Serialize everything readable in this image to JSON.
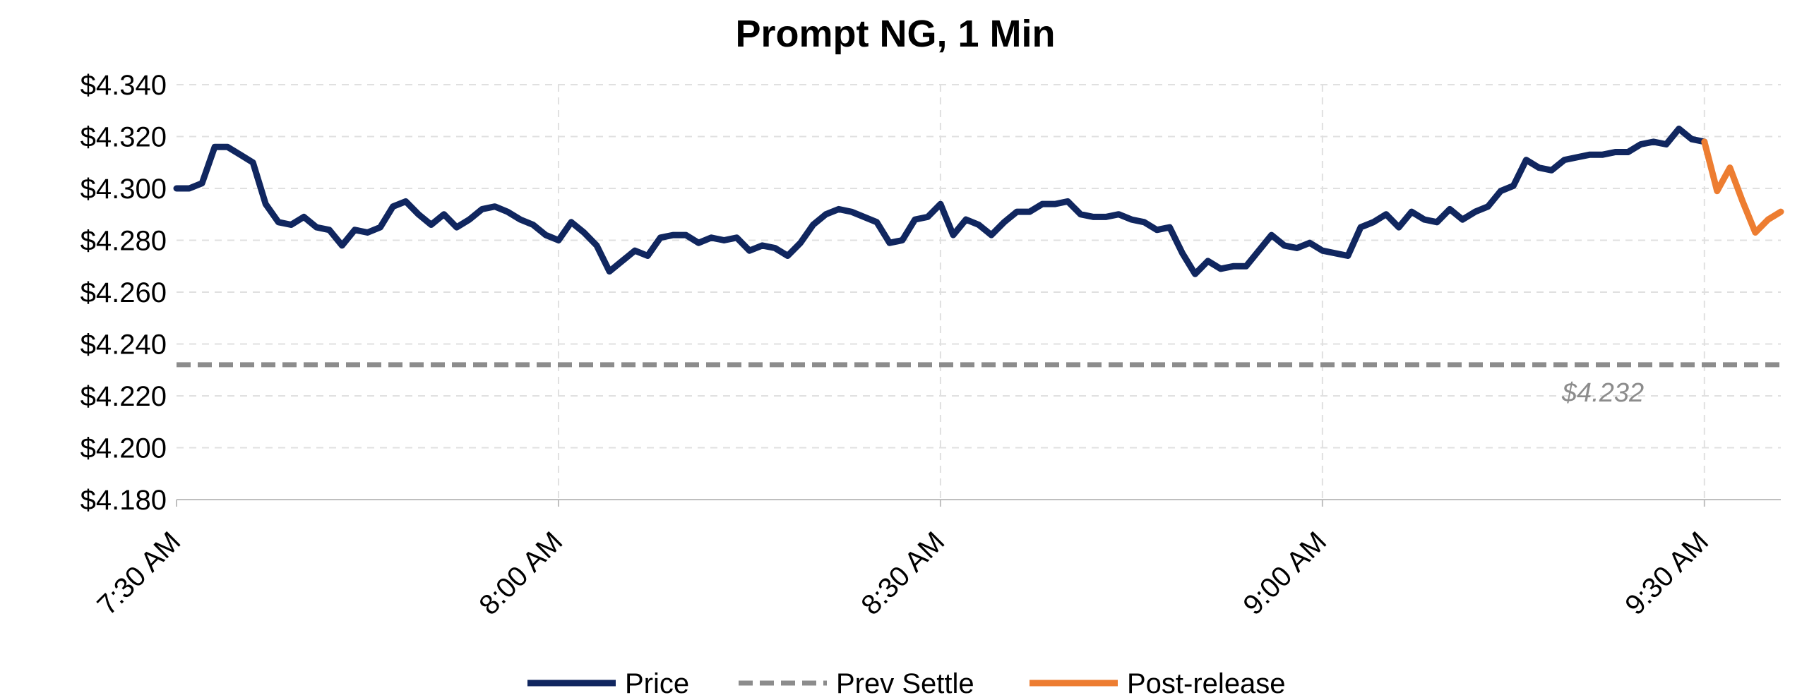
{
  "chart_data": {
    "type": "line",
    "title": "Prompt NG, 1 Min",
    "ylim": [
      4.18,
      4.34
    ],
    "yticks": [
      "$4.180",
      "$4.200",
      "$4.220",
      "$4.240",
      "$4.260",
      "$4.280",
      "$4.300",
      "$4.320",
      "$4.340"
    ],
    "ytick_values": [
      4.18,
      4.2,
      4.22,
      4.24,
      4.26,
      4.28,
      4.3,
      4.32,
      4.34
    ],
    "xlim": [
      "7:30 AM",
      "9:36 AM"
    ],
    "xticks": [
      "7:30 AM",
      "8:00 AM",
      "8:30 AM",
      "9:00 AM",
      "9:30 AM"
    ],
    "grid": true,
    "legend_position": "bottom",
    "series": [
      {
        "name": "Price",
        "color": "#10265f",
        "style": "solid",
        "x": [
          "7:30 AM",
          "7:31 AM",
          "7:32 AM",
          "7:33 AM",
          "7:34 AM",
          "7:35 AM",
          "7:36 AM",
          "7:37 AM",
          "7:38 AM",
          "7:39 AM",
          "7:40 AM",
          "7:41 AM",
          "7:42 AM",
          "7:43 AM",
          "7:44 AM",
          "7:45 AM",
          "7:46 AM",
          "7:47 AM",
          "7:48 AM",
          "7:49 AM",
          "7:50 AM",
          "7:51 AM",
          "7:52 AM",
          "7:53 AM",
          "7:54 AM",
          "7:55 AM",
          "7:56 AM",
          "7:57 AM",
          "7:58 AM",
          "7:59 AM",
          "8:00 AM",
          "8:01 AM",
          "8:02 AM",
          "8:03 AM",
          "8:04 AM",
          "8:05 AM",
          "8:06 AM",
          "8:07 AM",
          "8:08 AM",
          "8:09 AM",
          "8:10 AM",
          "8:11 AM",
          "8:12 AM",
          "8:13 AM",
          "8:14 AM",
          "8:15 AM",
          "8:16 AM",
          "8:17 AM",
          "8:18 AM",
          "8:19 AM",
          "8:20 AM",
          "8:21 AM",
          "8:22 AM",
          "8:23 AM",
          "8:24 AM",
          "8:25 AM",
          "8:26 AM",
          "8:27 AM",
          "8:28 AM",
          "8:29 AM",
          "8:30 AM",
          "8:31 AM",
          "8:32 AM",
          "8:33 AM",
          "8:34 AM",
          "8:35 AM",
          "8:36 AM",
          "8:37 AM",
          "8:38 AM",
          "8:39 AM",
          "8:40 AM",
          "8:41 AM",
          "8:42 AM",
          "8:43 AM",
          "8:44 AM",
          "8:45 AM",
          "8:46 AM",
          "8:47 AM",
          "8:48 AM",
          "8:49 AM",
          "8:50 AM",
          "8:51 AM",
          "8:52 AM",
          "8:53 AM",
          "8:54 AM",
          "8:55 AM",
          "8:56 AM",
          "8:57 AM",
          "8:58 AM",
          "8:59 AM",
          "9:00 AM",
          "9:01 AM",
          "9:02 AM",
          "9:03 AM",
          "9:04 AM",
          "9:05 AM",
          "9:06 AM",
          "9:07 AM",
          "9:08 AM",
          "9:09 AM",
          "9:10 AM",
          "9:11 AM",
          "9:12 AM",
          "9:13 AM",
          "9:14 AM",
          "9:15 AM",
          "9:16 AM",
          "9:17 AM",
          "9:18 AM",
          "9:19 AM",
          "9:20 AM",
          "9:21 AM",
          "9:22 AM",
          "9:23 AM",
          "9:24 AM",
          "9:25 AM",
          "9:26 AM",
          "9:27 AM",
          "9:28 AM",
          "9:29 AM",
          "9:30 AM"
        ],
        "values": [
          4.3,
          4.3,
          4.302,
          4.316,
          4.316,
          4.313,
          4.31,
          4.294,
          4.287,
          4.286,
          4.289,
          4.285,
          4.284,
          4.278,
          4.284,
          4.283,
          4.285,
          4.293,
          4.295,
          4.29,
          4.286,
          4.29,
          4.285,
          4.288,
          4.292,
          4.293,
          4.291,
          4.288,
          4.286,
          4.282,
          4.28,
          4.287,
          4.283,
          4.278,
          4.268,
          4.272,
          4.276,
          4.274,
          4.281,
          4.282,
          4.282,
          4.279,
          4.281,
          4.28,
          4.281,
          4.276,
          4.278,
          4.277,
          4.274,
          4.279,
          4.286,
          4.29,
          4.292,
          4.291,
          4.289,
          4.287,
          4.279,
          4.28,
          4.288,
          4.289,
          4.294,
          4.282,
          4.288,
          4.286,
          4.282,
          4.287,
          4.291,
          4.291,
          4.294,
          4.294,
          4.295,
          4.29,
          4.289,
          4.289,
          4.29,
          4.288,
          4.287,
          4.284,
          4.285,
          4.275,
          4.267,
          4.272,
          4.269,
          4.27,
          4.27,
          4.276,
          4.282,
          4.278,
          4.277,
          4.279,
          4.276,
          4.275,
          4.274,
          4.285,
          4.287,
          4.29,
          4.285,
          4.291,
          4.288,
          4.287,
          4.292,
          4.288,
          4.291,
          4.293,
          4.299,
          4.301,
          4.311,
          4.308,
          4.307,
          4.311,
          4.312,
          4.313,
          4.313,
          4.314,
          4.314,
          4.317,
          4.318,
          4.317,
          4.323,
          4.319,
          4.318
        ]
      },
      {
        "name": "Prev Settle",
        "color": "#8c8c8c",
        "style": "dashed",
        "value": 4.232,
        "label": "$4.232"
      },
      {
        "name": "Post-release",
        "color": "#ed7d31",
        "style": "solid",
        "x": [
          "9:30 AM",
          "9:31 AM",
          "9:32 AM",
          "9:33 AM",
          "9:34 AM",
          "9:35 AM",
          "9:36 AM"
        ],
        "values": [
          4.318,
          4.299,
          4.308,
          4.295,
          4.283,
          4.288,
          4.291
        ]
      }
    ]
  }
}
